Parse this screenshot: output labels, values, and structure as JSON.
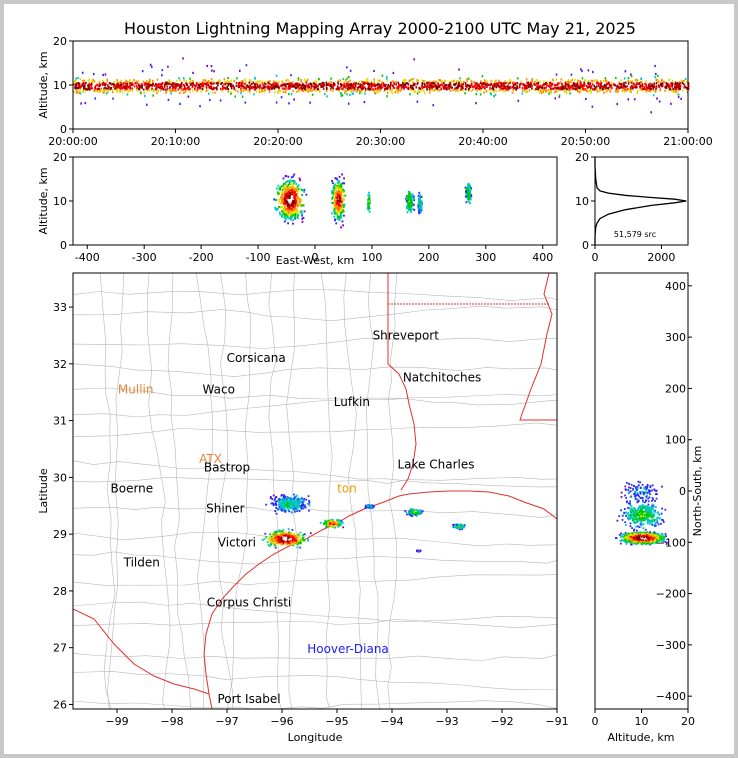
{
  "colors": {
    "border": "#000000",
    "state_lines": "#e03030",
    "county_lines": "#b8b8b8",
    "density_scale": [
      "#7a00cc",
      "#2a2aff",
      "#00c8c8",
      "#00c800",
      "#e0e000",
      "#ff8c00",
      "#ff0000",
      "#800000",
      "#ffffff"
    ]
  },
  "chart_data": [
    {
      "id": "altitude_vs_time",
      "type": "heatmap",
      "title": "Houston Lightning Mapping Array 2000-2100 UTC May 21, 2025",
      "xlabel": "",
      "ylabel": "Altitude, km",
      "x_ticks": [
        "20:00:00",
        "20:10:00",
        "20:20:00",
        "20:30:00",
        "20:40:00",
        "20:50:00",
        "21:00:00"
      ],
      "y_ticks": [
        "0",
        "10",
        "20"
      ],
      "xlim": [
        0,
        60
      ],
      "ylim": [
        0,
        20
      ],
      "band": {
        "core_altitude_km": 10,
        "spread_km": [
          6,
          13
        ]
      }
    },
    {
      "id": "altitude_vs_eastwest",
      "type": "heatmap",
      "xlabel": "East-West, km",
      "ylabel": "Altitude, km",
      "x_ticks": [
        "-400",
        "-300",
        "-200",
        "-100",
        "0",
        "100",
        "200",
        "300",
        "400"
      ],
      "y_ticks": [
        "0",
        "10",
        "20"
      ],
      "xlim": [
        -425,
        425
      ],
      "ylim": [
        0,
        20
      ],
      "cells": [
        {
          "x_km": -45,
          "z_km": 10.5,
          "width_km": 35,
          "level": 8
        },
        {
          "x_km": 40,
          "z_km": 10.5,
          "width_km": 18,
          "level": 7
        },
        {
          "x_km": 93,
          "z_km": 10,
          "width_km": 4,
          "level": 3
        },
        {
          "x_km": 165,
          "z_km": 10,
          "width_km": 10,
          "level": 3
        },
        {
          "x_km": 183,
          "z_km": 9.5,
          "width_km": 6,
          "level": 2
        },
        {
          "x_km": 268,
          "z_km": 12,
          "width_km": 7,
          "level": 3
        }
      ]
    },
    {
      "id": "altitude_histogram",
      "type": "line",
      "xlabel": "",
      "ylabel": "",
      "x_ticks": [
        "0",
        "2000"
      ],
      "y_ticks": [
        "0",
        "10",
        "20"
      ],
      "xlim": [
        0,
        2800
      ],
      "ylim": [
        0,
        20
      ],
      "annotation": "51,579 src",
      "profile": [
        [
          0,
          0
        ],
        [
          0,
          2
        ],
        [
          20,
          4
        ],
        [
          60,
          5
        ],
        [
          150,
          6
        ],
        [
          400,
          7
        ],
        [
          900,
          8
        ],
        [
          1700,
          9
        ],
        [
          2400,
          9.6
        ],
        [
          2750,
          10
        ],
        [
          2400,
          10.4
        ],
        [
          1700,
          10.8
        ],
        [
          900,
          11.3
        ],
        [
          400,
          11.8
        ],
        [
          150,
          12.3
        ],
        [
          60,
          13
        ],
        [
          20,
          15
        ],
        [
          0,
          18
        ],
        [
          0,
          20
        ]
      ]
    },
    {
      "id": "plan_view",
      "type": "scatter",
      "xlabel": "Longitude",
      "ylabel": "Latitude",
      "x_ticks": [
        "−99",
        "−98",
        "−97",
        "−96",
        "−95",
        "−94",
        "−93",
        "−92",
        "−91"
      ],
      "y_ticks": [
        "26",
        "27",
        "28",
        "29",
        "30",
        "31",
        "32",
        "33"
      ],
      "xlim": [
        -99.8,
        -91
      ],
      "ylim": [
        25.92,
        33.6
      ],
      "cities": [
        {
          "name": "Shreveport",
          "lon": -93.75,
          "lat": 32.5,
          "color": "#000000"
        },
        {
          "name": "Corsicana",
          "lon": -96.47,
          "lat": 32.1,
          "color": "#000000"
        },
        {
          "name": "Natchitoches",
          "lon": -93.09,
          "lat": 31.76,
          "color": "#000000"
        },
        {
          "name": "Mullin",
          "lon": -98.66,
          "lat": 31.55,
          "color": "#e8853a"
        },
        {
          "name": "Waco",
          "lon": -97.15,
          "lat": 31.55,
          "color": "#000000"
        },
        {
          "name": "Lufkin",
          "lon": -94.73,
          "lat": 31.33,
          "color": "#000000"
        },
        {
          "name": "ATX",
          "lon": -97.3,
          "lat": 30.32,
          "color": "#e8853a"
        },
        {
          "name": "Bastrop",
          "lon": -97.0,
          "lat": 30.17,
          "color": "#000000"
        },
        {
          "name": "Lake Charles",
          "lon": -93.2,
          "lat": 30.23,
          "color": "#000000"
        },
        {
          "name": "Boerne",
          "lon": -98.73,
          "lat": 29.8,
          "color": "#000000"
        },
        {
          "name": "ton",
          "lon": -94.82,
          "lat": 29.8,
          "color": "#e8a000"
        },
        {
          "name": "Shiner",
          "lon": -97.03,
          "lat": 29.45,
          "color": "#000000"
        },
        {
          "name": "Victori",
          "lon": -96.82,
          "lat": 28.85,
          "color": "#000000"
        },
        {
          "name": "Tilden",
          "lon": -98.55,
          "lat": 28.5,
          "color": "#000000"
        },
        {
          "name": "Corpus Christi",
          "lon": -96.6,
          "lat": 27.8,
          "color": "#000000"
        },
        {
          "name": "Hoover-Diana",
          "lon": -94.8,
          "lat": 26.98,
          "color": "#1a1aff"
        },
        {
          "name": "Port Isabel",
          "lon": -96.6,
          "lat": 26.1,
          "color": "#000000"
        }
      ],
      "clusters": [
        {
          "lon": -95.95,
          "lat": 28.93,
          "size": 10,
          "level": 8
        },
        {
          "lon": -95.87,
          "lat": 29.55,
          "size": 10,
          "level": 2
        },
        {
          "lon": -95.1,
          "lat": 29.2,
          "size": 5,
          "level": 6
        },
        {
          "lon": -94.42,
          "lat": 29.5,
          "size": 2,
          "level": 2
        },
        {
          "lon": -93.6,
          "lat": 29.4,
          "size": 4,
          "level": 3
        },
        {
          "lon": -92.8,
          "lat": 29.15,
          "size": 3,
          "level": 3
        },
        {
          "lon": -93.53,
          "lat": 28.72,
          "size": 1,
          "level": 1
        }
      ]
    },
    {
      "id": "northsouth_vs_altitude",
      "type": "heatmap",
      "xlabel": "Altitude, km",
      "ylabel": "North-South, km",
      "x_ticks": [
        "0",
        "10",
        "20"
      ],
      "y_ticks": [
        "−400",
        "−300",
        "−200",
        "−100",
        "0",
        "100",
        "200",
        "300",
        "400"
      ],
      "xlim": [
        0,
        20
      ],
      "ylim": [
        -425,
        425
      ],
      "cells": [
        {
          "z_km": 10,
          "y_km": -90,
          "height_km": 15,
          "level": 8
        },
        {
          "z_km": 10,
          "y_km": -45,
          "height_km": 35,
          "level": 3
        },
        {
          "z_km": 10,
          "y_km": 0,
          "height_km": 30,
          "level": 1
        }
      ]
    }
  ]
}
